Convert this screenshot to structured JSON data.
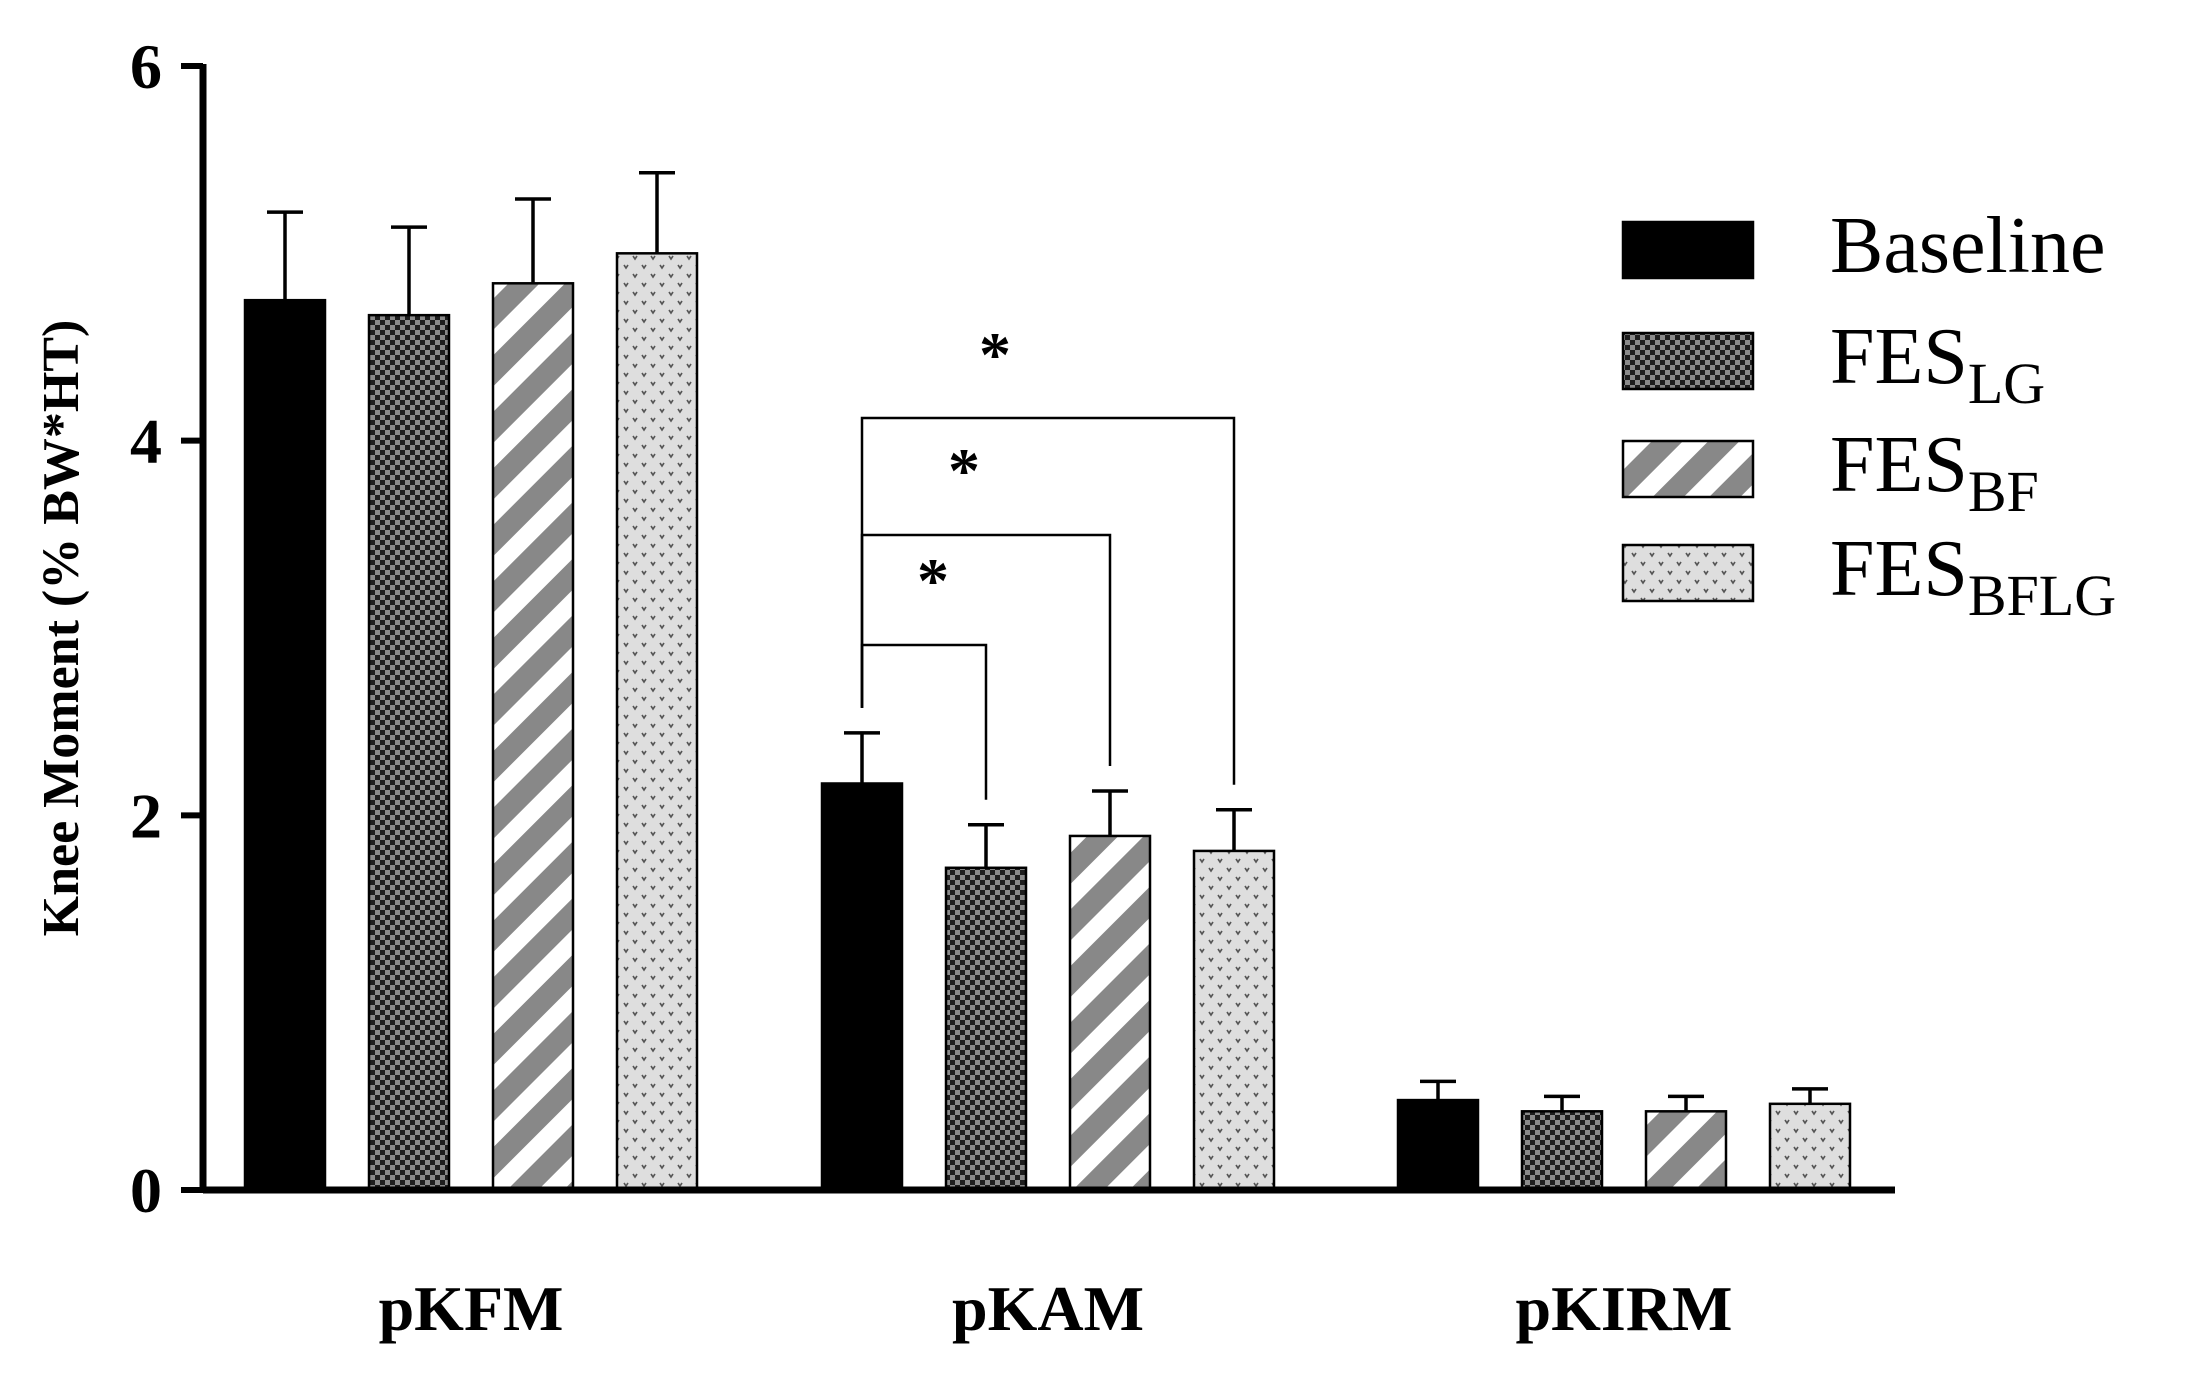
{
  "chart_data": {
    "type": "bar",
    "ylabel": "Knee Moment (% BW*HT)",
    "xlabel": "",
    "ylim": [
      0,
      6
    ],
    "yticks": [
      0,
      2,
      4,
      6
    ],
    "ytick_labels": [
      "0",
      "2",
      "4",
      "6"
    ],
    "categories": [
      "pKFM",
      "pKAM",
      "pKIRM"
    ],
    "series": [
      {
        "name": "Baseline",
        "base": "Baseline",
        "sub": "",
        "pattern": "solid",
        "values": [
          4.75,
          2.17,
          0.48
        ],
        "errors": [
          0.47,
          0.27,
          0.1
        ]
      },
      {
        "name": "FES_LG",
        "base": "FES",
        "sub": "LG",
        "pattern": "checker",
        "values": [
          4.67,
          1.72,
          0.42
        ],
        "errors": [
          0.47,
          0.23,
          0.08
        ]
      },
      {
        "name": "FES_BF",
        "base": "FES",
        "sub": "BF",
        "pattern": "stripes",
        "values": [
          4.84,
          1.89,
          0.42
        ],
        "errors": [
          0.45,
          0.24,
          0.08
        ]
      },
      {
        "name": "FES_BFLG",
        "base": "FES",
        "sub": "BFLG",
        "pattern": "dots",
        "values": [
          5.0,
          1.81,
          0.46
        ],
        "errors": [
          0.43,
          0.22,
          0.08
        ]
      }
    ],
    "significance": [
      {
        "category": "pKAM",
        "from_series": 0,
        "to_series": 1,
        "label": "*"
      },
      {
        "category": "pKAM",
        "from_series": 0,
        "to_series": 2,
        "label": "*"
      },
      {
        "category": "pKAM",
        "from_series": 0,
        "to_series": 3,
        "label": "*"
      }
    ],
    "legend_position": "top-right",
    "grid": false
  }
}
